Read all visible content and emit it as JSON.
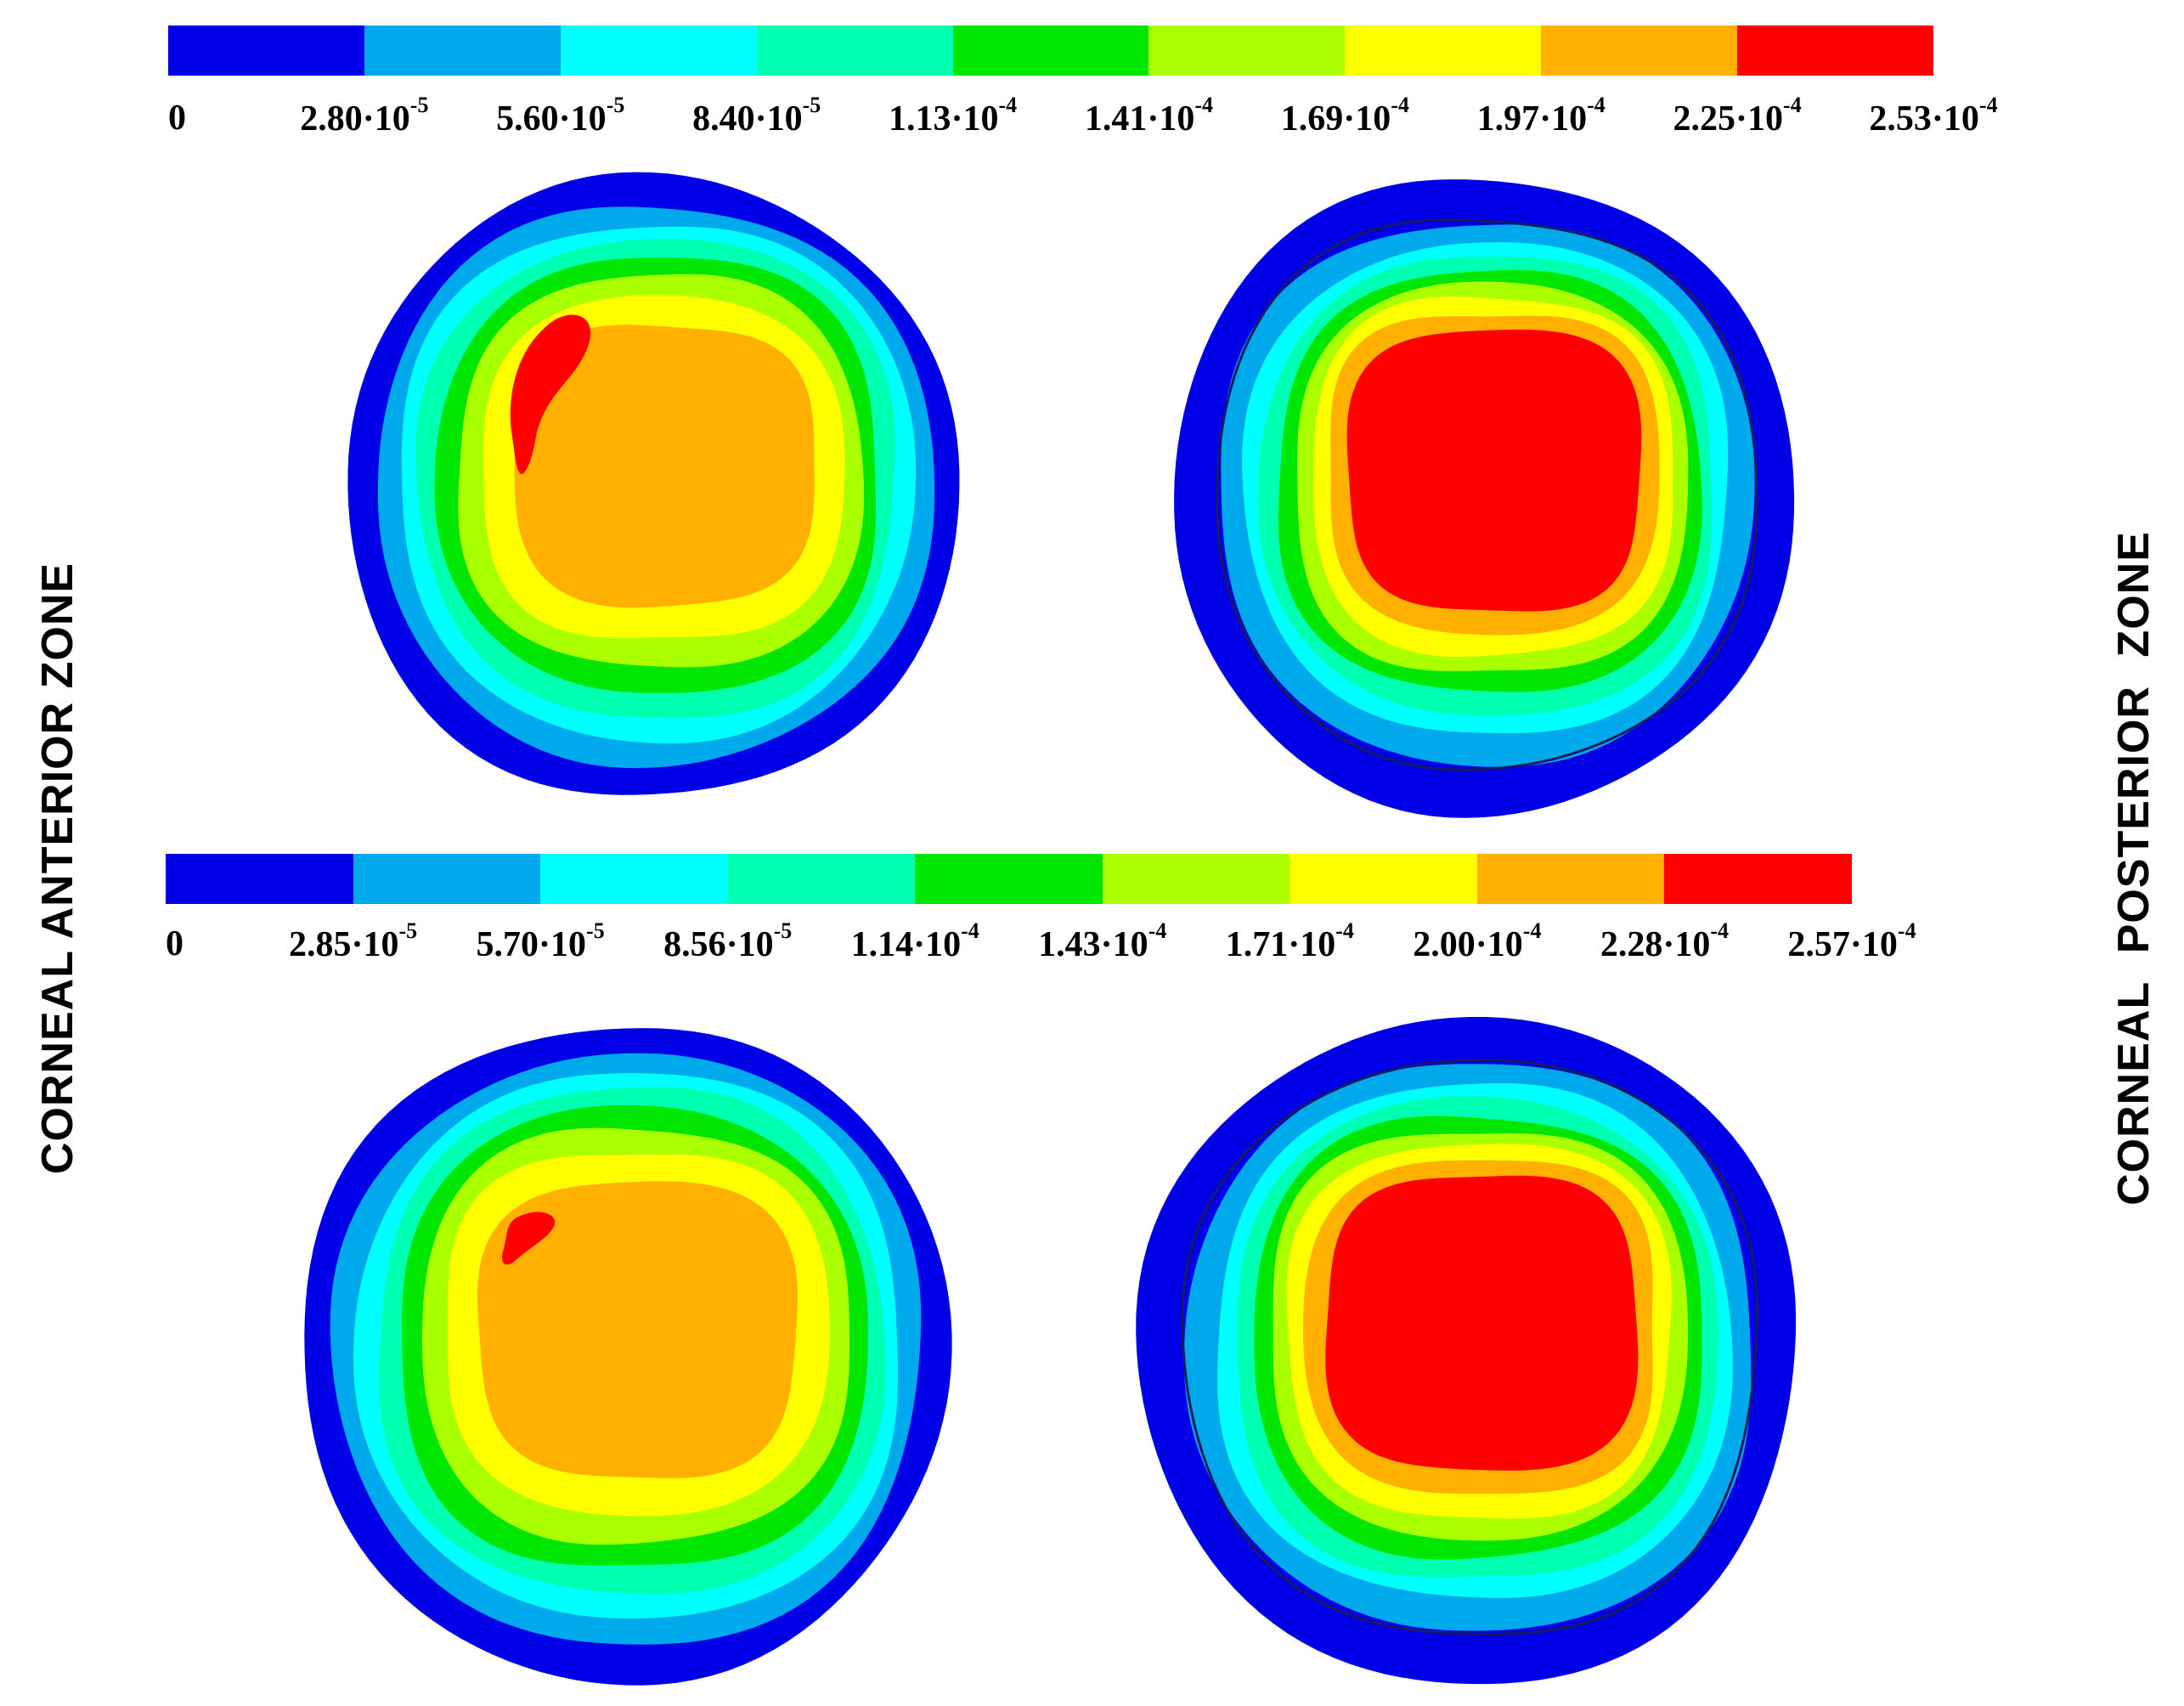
{
  "colors": [
    "#0000e6",
    "#00a8ec",
    "#00ffff",
    "#00ffb0",
    "#00e600",
    "#aaff00",
    "#ffff00",
    "#ffb000",
    "#ff0000"
  ],
  "colorbar_top": {
    "ticks": [
      {
        "mantissa": "0",
        "exponent": ""
      },
      {
        "mantissa": "2.80·10",
        "exponent": "-5"
      },
      {
        "mantissa": "5.60·10",
        "exponent": "-5"
      },
      {
        "mantissa": "8.40·10",
        "exponent": "-5"
      },
      {
        "mantissa": "1.13·10",
        "exponent": "-4"
      },
      {
        "mantissa": "1.41·10",
        "exponent": "-4"
      },
      {
        "mantissa": "1.69·10",
        "exponent": "-4"
      },
      {
        "mantissa": "1.97·10",
        "exponent": "-4"
      },
      {
        "mantissa": "2.25·10",
        "exponent": "-4"
      },
      {
        "mantissa": "2.53·10",
        "exponent": "-4"
      }
    ]
  },
  "colorbar_bottom": {
    "ticks": [
      {
        "mantissa": "0",
        "exponent": ""
      },
      {
        "mantissa": "2.85·10",
        "exponent": "-5"
      },
      {
        "mantissa": "5.70·10",
        "exponent": "-5"
      },
      {
        "mantissa": "8.56·10",
        "exponent": "-5"
      },
      {
        "mantissa": "1.14·10",
        "exponent": "-4"
      },
      {
        "mantissa": "1.43·10",
        "exponent": "-4"
      },
      {
        "mantissa": "1.71·10",
        "exponent": "-4"
      },
      {
        "mantissa": "2.00·10",
        "exponent": "-4"
      },
      {
        "mantissa": "2.28·10",
        "exponent": "-4"
      },
      {
        "mantissa": "2.57·10",
        "exponent": "-4"
      }
    ]
  },
  "labels": {
    "left": "CORNEAL ANTERIOR ZONE",
    "right": "CORNEAL POSTERIOR ZONE"
  }
}
